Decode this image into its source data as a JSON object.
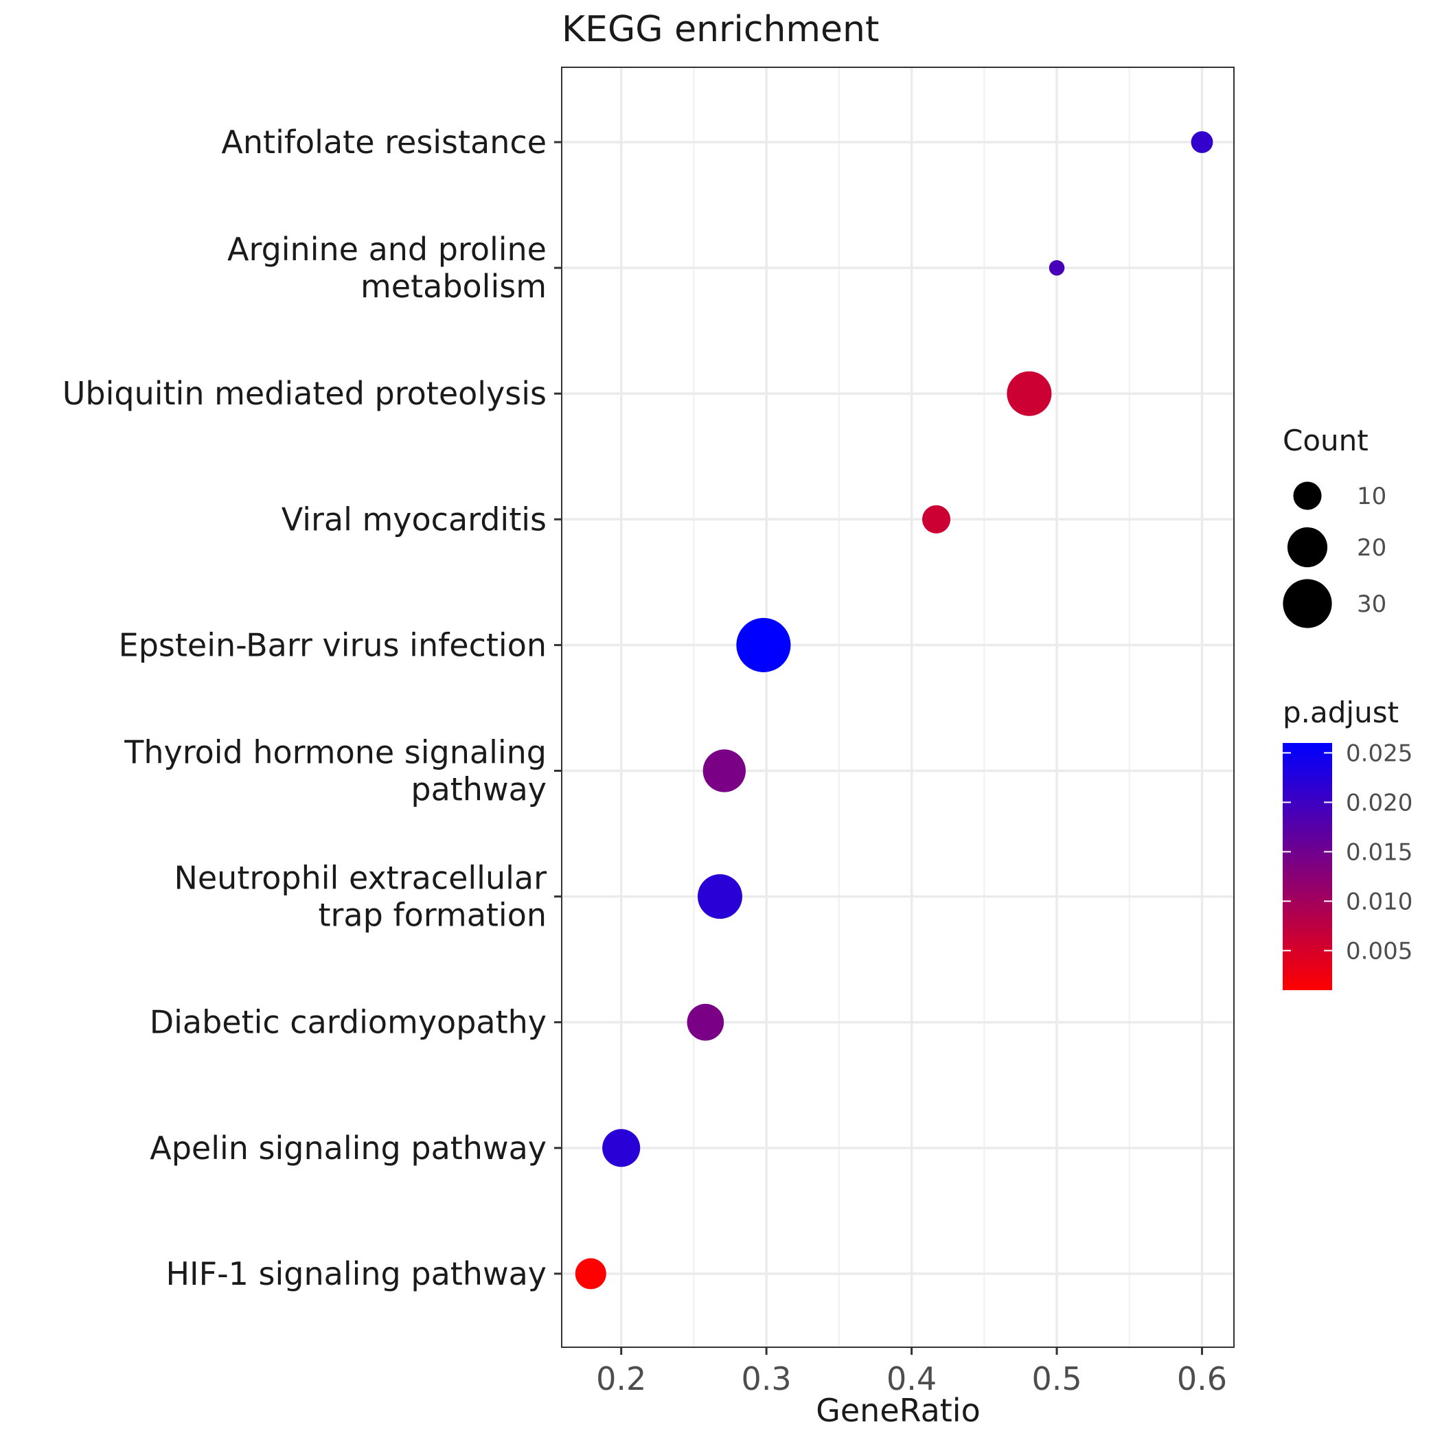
{
  "chart_data": {
    "type": "scatter",
    "title": "KEGG enrichment",
    "xlabel": "GeneRatio",
    "ylabel": "",
    "xlim": [
      0.159,
      0.622
    ],
    "xticks": [
      "0.2",
      "0.3",
      "0.4",
      "0.5",
      "0.6"
    ],
    "grid": true,
    "categories": [
      [
        "Antifolate resistance"
      ],
      [
        "Arginine and proline",
        "metabolism"
      ],
      [
        "Ubiquitin mediated proteolysis"
      ],
      [
        "Viral myocarditis"
      ],
      [
        "Epstein-Barr virus infection"
      ],
      [
        "Thyroid hormone signaling",
        "pathway"
      ],
      [
        "Neutrophil extracellular",
        "trap formation"
      ],
      [
        "Diabetic cardiomyopathy"
      ],
      [
        "Apelin signaling pathway"
      ],
      [
        "HIF-1 signaling pathway"
      ]
    ],
    "points": [
      {
        "gene_ratio": 0.6,
        "count": 6,
        "p_adjust": 0.021
      },
      {
        "gene_ratio": 0.5,
        "count": 3,
        "p_adjust": 0.019
      },
      {
        "gene_ratio": 0.481,
        "count": 25,
        "p_adjust": 0.006
      },
      {
        "gene_ratio": 0.417,
        "count": 10,
        "p_adjust": 0.006
      },
      {
        "gene_ratio": 0.298,
        "count": 37,
        "p_adjust": 0.026
      },
      {
        "gene_ratio": 0.271,
        "count": 23,
        "p_adjust": 0.014
      },
      {
        "gene_ratio": 0.268,
        "count": 25,
        "p_adjust": 0.022
      },
      {
        "gene_ratio": 0.258,
        "count": 17,
        "p_adjust": 0.014
      },
      {
        "gene_ratio": 0.2,
        "count": 18,
        "p_adjust": 0.022
      },
      {
        "gene_ratio": 0.179,
        "count": 12,
        "p_adjust": 0.001
      }
    ],
    "size_legend": {
      "title": "Count",
      "breaks": [
        10,
        20,
        30
      ],
      "labels": [
        "10",
        "20",
        "30"
      ]
    },
    "color_legend": {
      "title": "p.adjust",
      "low_color": "#FF0000",
      "high_color": "#0000FF",
      "range": [
        0.001,
        0.026
      ],
      "breaks": [
        0.005,
        0.01,
        0.015,
        0.02,
        0.025
      ],
      "labels": [
        "0.005",
        "0.010",
        "0.015",
        "0.020",
        "0.025"
      ]
    },
    "legend_position": "right"
  }
}
